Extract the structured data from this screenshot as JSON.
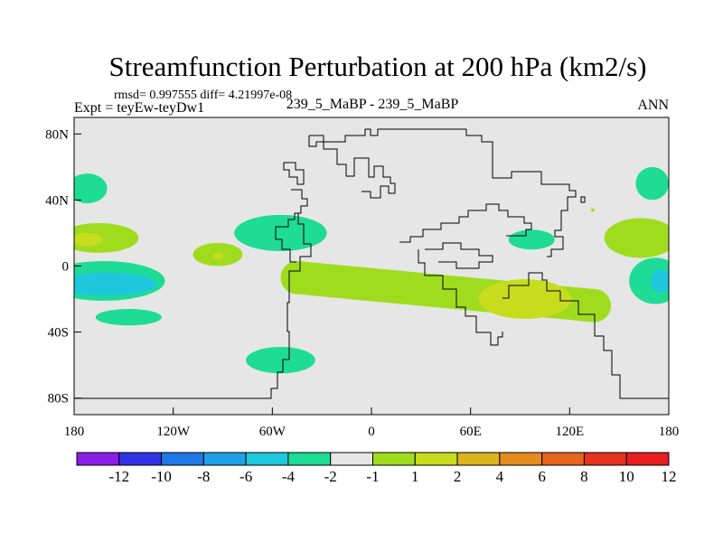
{
  "chart_data": {
    "type": "heatmap",
    "title": "Streamfunction Perturbation at 200 hPa (km2/s)",
    "stats_line": "rmsd= 0.997555 diff= 4.21997e-08",
    "experiment_label": "Expt = teyEw-teyDw1",
    "case_label": "239_5_MaBP - 239_5_MaBP",
    "season_label": "ANN",
    "x_range": [
      -180,
      180
    ],
    "y_range": [
      -90,
      90
    ],
    "x_ticks": [
      {
        "value": -180,
        "label": "180"
      },
      {
        "value": -120,
        "label": "120W"
      },
      {
        "value": -60,
        "label": "60W"
      },
      {
        "value": 0,
        "label": "0"
      },
      {
        "value": 60,
        "label": "60E"
      },
      {
        "value": 120,
        "label": "120E"
      },
      {
        "value": 180,
        "label": "180"
      }
    ],
    "y_ticks": [
      {
        "value": 80,
        "label": "80N"
      },
      {
        "value": 40,
        "label": "40N"
      },
      {
        "value": 0,
        "label": "0"
      },
      {
        "value": -40,
        "label": "40S"
      },
      {
        "value": -80,
        "label": "80S"
      }
    ],
    "background_color": "#e6e6e6",
    "colorbar": {
      "colors": [
        "#8a1ee6",
        "#3232e6",
        "#1e78e6",
        "#1ea0e6",
        "#1ec8dc",
        "#1edc96",
        "#e6e6e6",
        "#a0dc1e",
        "#c8dc1e",
        "#dcb41e",
        "#e68c1e",
        "#e6641e",
        "#e6321e",
        "#e61e1e"
      ],
      "labels": [
        "-12",
        "-10",
        "-8",
        "-6",
        "-4",
        "-2",
        "-1",
        "1",
        "2",
        "4",
        "6",
        "8",
        "10",
        "12"
      ]
    },
    "contour_regions": [
      {
        "level": "-2 to -1",
        "color": "#1edc96",
        "shape": "ellipse",
        "center": [
          -172,
          47
        ],
        "radii": [
          12,
          9
        ]
      },
      {
        "level": "-2 to -1",
        "color": "#1edc96",
        "shape": "ellipse",
        "center": [
          -162,
          -9
        ],
        "radii": [
          37,
          12
        ]
      },
      {
        "level": "-4 to -2",
        "color": "#1ec8dc",
        "shape": "ellipse",
        "center": [
          -160,
          -11
        ],
        "radii": [
          30,
          7
        ]
      },
      {
        "level": "-2 to -1",
        "color": "#1edc96",
        "shape": "ellipse",
        "center": [
          -147,
          -31
        ],
        "radii": [
          20,
          5
        ]
      },
      {
        "level": "-2 to -1",
        "color": "#1edc96",
        "shape": "ellipse",
        "center": [
          -55,
          20
        ],
        "radii": [
          28,
          11
        ]
      },
      {
        "level": "-2 to -1",
        "color": "#1edc96",
        "shape": "ellipse",
        "center": [
          -55,
          -57
        ],
        "radii": [
          21,
          8
        ]
      },
      {
        "level": "-2 to -1",
        "color": "#1edc96",
        "shape": "ellipse",
        "center": [
          97,
          16
        ],
        "radii": [
          14,
          6
        ]
      },
      {
        "level": "-2 to -1",
        "color": "#1edc96",
        "shape": "ellipse",
        "center": [
          170,
          50
        ],
        "radii": [
          10,
          10
        ]
      },
      {
        "level": "-2 to -1",
        "color": "#1edc96",
        "shape": "ellipse",
        "center": [
          172,
          -9
        ],
        "radii": [
          16,
          14
        ]
      },
      {
        "level": "-4 to -2",
        "color": "#1ec8dc",
        "shape": "ellipse",
        "center": [
          175,
          -9
        ],
        "radii": [
          6,
          7
        ]
      },
      {
        "level": "1 to 2",
        "color": "#a0dc1e",
        "shape": "ellipse",
        "center": [
          -165,
          17
        ],
        "radii": [
          24,
          9
        ]
      },
      {
        "level": "2 to 4",
        "color": "#c8dc1e",
        "shape": "ellipse",
        "center": [
          -172,
          16
        ],
        "radii": [
          9,
          4
        ]
      },
      {
        "level": "1 to 2",
        "color": "#a0dc1e",
        "shape": "ellipse",
        "center": [
          -93,
          7
        ],
        "radii": [
          15,
          7
        ]
      },
      {
        "level": "2 to 4",
        "color": "#c8dc1e",
        "shape": "ellipse",
        "center": [
          -93,
          6
        ],
        "radii": [
          3,
          2
        ]
      },
      {
        "level": "1 to 2",
        "color": "#a0dc1e",
        "shape": "band",
        "from": [
          -45,
          -7
        ],
        "to": [
          135,
          -24
        ],
        "half_width": 10
      },
      {
        "level": "2 to 4",
        "color": "#c8dc1e",
        "shape": "ellipse",
        "center": [
          93,
          -20
        ],
        "radii": [
          28,
          12
        ]
      },
      {
        "level": "1 to 2",
        "color": "#a0dc1e",
        "shape": "ellipse",
        "center": [
          163,
          17
        ],
        "radii": [
          22,
          12
        ]
      },
      {
        "level": "1 to 2",
        "color": "#a0dc1e",
        "shape": "ellipse",
        "center": [
          134,
          34
        ],
        "radii": [
          1,
          1
        ]
      }
    ]
  }
}
